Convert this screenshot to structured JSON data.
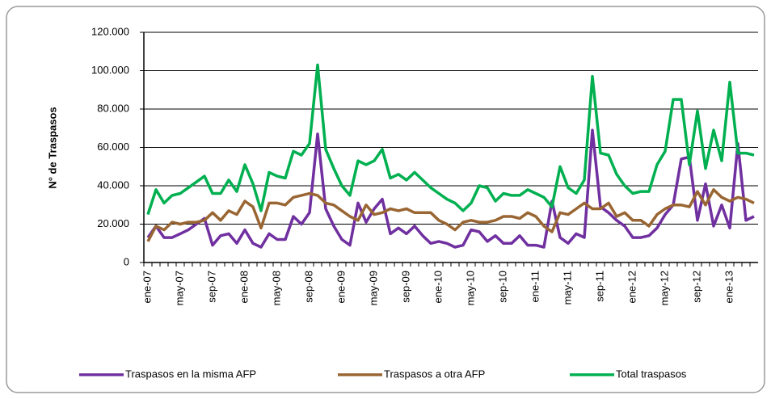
{
  "chart_data": {
    "type": "line",
    "y_label": "N° de Traspasos",
    "categories": [
      "ene-07",
      null,
      null,
      null,
      "may-07",
      null,
      null,
      null,
      "sep-07",
      null,
      null,
      null,
      "ene-08",
      null,
      null,
      null,
      "may-08",
      null,
      null,
      null,
      "sep-08",
      null,
      null,
      null,
      "ene-09",
      null,
      null,
      null,
      "may-09",
      null,
      null,
      null,
      "sep-09",
      null,
      null,
      null,
      "ene-10",
      null,
      null,
      null,
      "may-10",
      null,
      null,
      null,
      "sep-10",
      null,
      null,
      null,
      "ene-11",
      null,
      null,
      null,
      "may-11",
      null,
      null,
      null,
      "sep-11",
      null,
      null,
      null,
      "ene-12",
      null,
      null,
      null,
      "may-12",
      null,
      null,
      null,
      "sep-12",
      null,
      null,
      null,
      "ene-13",
      null,
      null,
      null
    ],
    "series": [
      {
        "name": "Traspasos en la misma AFP",
        "color": "#7030a0",
        "values": [
          13000,
          19000,
          13000,
          13000,
          15000,
          17000,
          20000,
          23000,
          9000,
          14000,
          15000,
          10000,
          17000,
          10000,
          8000,
          15000,
          12000,
          12000,
          24000,
          20000,
          26000,
          67000,
          28000,
          19000,
          12000,
          9000,
          31000,
          21000,
          28000,
          33000,
          15000,
          18000,
          15000,
          19000,
          14000,
          10000,
          11000,
          10000,
          8000,
          9000,
          17000,
          16000,
          11000,
          14000,
          10000,
          10000,
          14000,
          9000,
          9000,
          8000,
          32000,
          13000,
          10000,
          15000,
          13000,
          69000,
          29000,
          26000,
          22000,
          19000,
          13000,
          13000,
          14000,
          18000,
          25000,
          30000,
          54000,
          55000,
          22000,
          41000,
          19000,
          30000,
          18000,
          62000,
          22000,
          24000
        ]
      },
      {
        "name": "Traspasos a otra AFP",
        "color": "#996633",
        "values": [
          11000,
          19000,
          17000,
          21000,
          20000,
          21000,
          21000,
          22000,
          26000,
          22000,
          27000,
          25000,
          32000,
          29000,
          18000,
          31000,
          31000,
          30000,
          34000,
          35000,
          36000,
          35000,
          31000,
          30000,
          27000,
          24000,
          22000,
          30000,
          25000,
          26000,
          28000,
          27000,
          28000,
          26000,
          26000,
          26000,
          22000,
          20000,
          17000,
          21000,
          22000,
          21000,
          21000,
          22000,
          24000,
          24000,
          23000,
          26000,
          24000,
          19000,
          16000,
          26000,
          25000,
          28000,
          31000,
          28000,
          28000,
          31000,
          24000,
          26000,
          22000,
          22000,
          19000,
          25000,
          28000,
          30000,
          30000,
          29000,
          37000,
          30000,
          38000,
          34000,
          32000,
          34000,
          33000,
          31000
        ]
      },
      {
        "name": "Total traspasos",
        "color": "#00b050",
        "values": [
          25000,
          38000,
          31000,
          35000,
          36000,
          39000,
          42000,
          45000,
          36000,
          36000,
          43000,
          37000,
          51000,
          41000,
          27000,
          47000,
          45000,
          44000,
          58000,
          56000,
          62000,
          103000,
          59000,
          49000,
          40000,
          35000,
          53000,
          51000,
          53000,
          59000,
          44000,
          46000,
          43000,
          47000,
          43000,
          39000,
          36000,
          33000,
          31000,
          27000,
          31000,
          40000,
          39000,
          32000,
          36000,
          35000,
          35000,
          38000,
          36000,
          34000,
          29000,
          50000,
          39000,
          36000,
          43000,
          97000,
          57000,
          56000,
          46000,
          40000,
          36000,
          37000,
          37000,
          51000,
          58000,
          85000,
          85000,
          51000,
          79000,
          49000,
          69000,
          53000,
          94000,
          57000,
          57000,
          56000
        ]
      }
    ],
    "ylim": [
      0,
      120000
    ],
    "yticks": [
      0,
      {
        "value": 20000,
        "label": "20.000"
      },
      {
        "value": 40000,
        "label": "40.000"
      },
      {
        "value": 60000,
        "label": "60.000"
      },
      {
        "value": 80000,
        "label": "80.000"
      },
      {
        "value": 100000,
        "label": "100.000"
      },
      {
        "value": 120000,
        "label": "120.000"
      }
    ],
    "grid": true,
    "legend": "bottom"
  }
}
